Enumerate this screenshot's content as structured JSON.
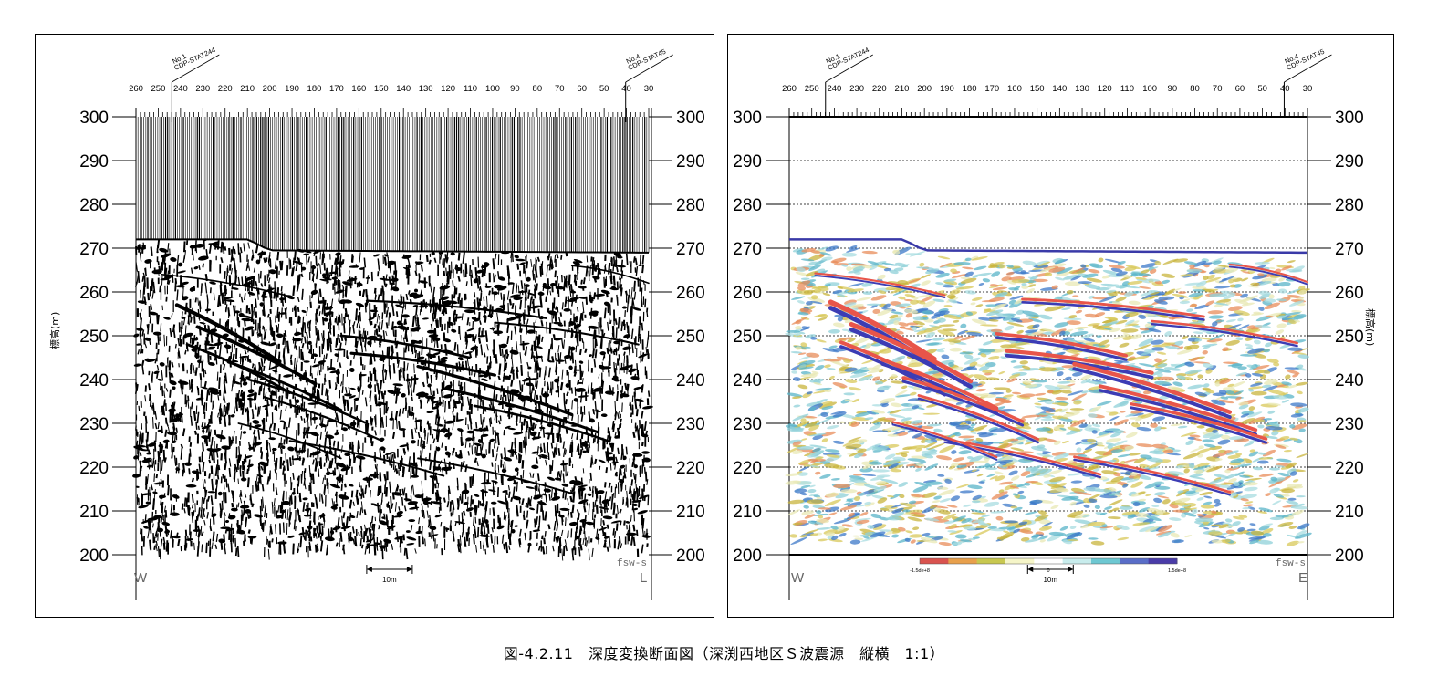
{
  "figure": {
    "caption": "図-4.2.11　深度変換断面図（深渕西地区Ｓ波震源　縦横　1:1）"
  },
  "panels": [
    {
      "id": "left",
      "kind": "seismic-wiggle",
      "station_labels": [
        "260",
        "250",
        "240",
        "230",
        "220",
        "210",
        "200",
        "190",
        "180",
        "170",
        "160",
        "150",
        "140",
        "130",
        "120",
        "110",
        "100",
        "90",
        "80",
        "70",
        "60",
        "50",
        "40",
        "30"
      ],
      "elevation_labels": [
        "300",
        "290",
        "280",
        "270",
        "260",
        "250",
        "240",
        "230",
        "220",
        "210",
        "200"
      ],
      "elevation_labels_right": [
        "300",
        "290",
        "280",
        "270",
        "260",
        "250",
        "240",
        "230",
        "220",
        "210",
        "200"
      ],
      "axis_title": "標高(m)",
      "marker_start": {
        "line1": "No.1",
        "line2": "CDP-STAT244"
      },
      "marker_end": {
        "line1": "No.4",
        "line2": "CDP-STAT45"
      },
      "west_label": "W",
      "east_label": "L",
      "scale_label": "10m",
      "code_label": "fsw-s"
    },
    {
      "id": "right",
      "kind": "seismic-color",
      "station_labels": [
        "260",
        "250",
        "240",
        "230",
        "220",
        "210",
        "200",
        "190",
        "180",
        "170",
        "160",
        "150",
        "140",
        "130",
        "120",
        "110",
        "100",
        "90",
        "80",
        "70",
        "60",
        "50",
        "40",
        "30"
      ],
      "elevation_labels": [
        "300",
        "290",
        "280",
        "270",
        "260",
        "250",
        "240",
        "230",
        "220",
        "210",
        "200"
      ],
      "elevation_labels_right": [
        "300",
        "290",
        "280",
        "270",
        "260",
        "250",
        "240",
        "230",
        "220",
        "210",
        "200"
      ],
      "axis_title": "標高(m)",
      "marker_start": {
        "line1": "No.1",
        "line2": "CDP-STAT244"
      },
      "marker_end": {
        "line1": "No.4",
        "line2": "CDP-STAT45"
      },
      "west_label": "W",
      "east_label": "E",
      "scale_label": "10m",
      "code_label": "fsw-s",
      "colorbar": {
        "min_label": "-1.5de+8",
        "mid_label": "0",
        "max_label": "1.5de+8",
        "colors": [
          "#d9534f",
          "#e8a04c",
          "#c8c850",
          "#f5f5c8",
          "#ffffff",
          "#c8ecec",
          "#6ec8d2",
          "#5a6ec8",
          "#4a3ca8"
        ]
      }
    }
  ],
  "palette": {
    "surface_line_right": "#3a3aa8",
    "reflector_red": "#e8554a",
    "reflector_blue": "#3c3cb4",
    "noise_cyan": "#5ab4c8",
    "noise_yellow": "#c8b43c"
  }
}
